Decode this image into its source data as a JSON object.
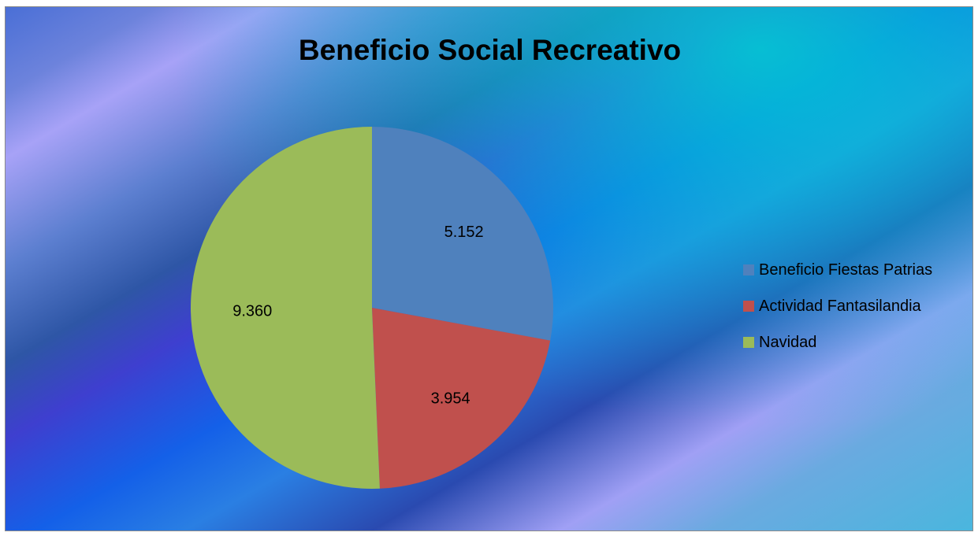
{
  "chart_data": {
    "type": "pie",
    "title": "Beneficio Social Recreativo",
    "categories": [
      "Beneficio Fiestas Patrias",
      "Actividad Fantasilandia",
      "Navidad"
    ],
    "values": [
      5152,
      3954,
      9360
    ],
    "data_labels": [
      "5.152",
      "3.954",
      "9.360"
    ],
    "colors": [
      "#4f81bd",
      "#c0504d",
      "#9bbb59"
    ],
    "legend_position": "right"
  }
}
